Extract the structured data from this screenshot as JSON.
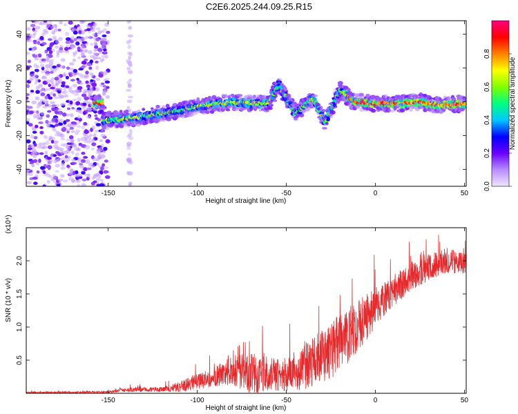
{
  "title": "C2E6.2025.244.09.25.R15",
  "chart_data": [
    {
      "type": "heatmap",
      "xlabel": "Height of straight line (km)",
      "ylabel": "Frequency (Hz)",
      "xlim": [
        -196,
        51
      ],
      "ylim": [
        -50,
        48
      ],
      "xticks": [
        -150,
        -100,
        -50,
        0,
        50
      ],
      "yticks": [
        -40,
        -20,
        0,
        20,
        40
      ],
      "colorbar": {
        "label": "Normalized spectral amplitude",
        "range": [
          0,
          1
        ],
        "ticks": [
          "0.0",
          "0.2",
          "0.4",
          "0.6",
          "0.8"
        ],
        "colors": [
          "#f0e6ff",
          "#b88cff",
          "#6a00ff",
          "#0000ff",
          "#00c8ff",
          "#00ff80",
          "#80ff00",
          "#ffff00",
          "#ff8000",
          "#ff0000",
          "#ff0080"
        ]
      },
      "ridge": [
        {
          "x": -153,
          "y": -11,
          "amp": 0.45
        },
        {
          "x": -140,
          "y": -10,
          "amp": 0.5
        },
        {
          "x": -125,
          "y": -8,
          "amp": 0.45
        },
        {
          "x": -110,
          "y": -5,
          "amp": 0.4
        },
        {
          "x": -95,
          "y": -2,
          "amp": 0.5
        },
        {
          "x": -80,
          "y": 0,
          "amp": 0.55
        },
        {
          "x": -70,
          "y": -1,
          "amp": 0.55
        },
        {
          "x": -60,
          "y": -1,
          "amp": 0.5
        },
        {
          "x": -54,
          "y": 10,
          "amp": 0.35
        },
        {
          "x": -45,
          "y": -7,
          "amp": 0.4
        },
        {
          "x": -35,
          "y": 2,
          "amp": 0.45
        },
        {
          "x": -28,
          "y": -12,
          "amp": 0.4
        },
        {
          "x": -20,
          "y": 7,
          "amp": 0.35
        },
        {
          "x": -12,
          "y": 0,
          "amp": 0.7
        },
        {
          "x": 0,
          "y": -1,
          "amp": 0.75
        },
        {
          "x": 15,
          "y": -1,
          "amp": 0.7
        },
        {
          "x": 25,
          "y": 0,
          "amp": 0.75
        },
        {
          "x": 35,
          "y": -2,
          "amp": 0.7
        },
        {
          "x": 50,
          "y": -1,
          "amp": 0.75
        }
      ]
    },
    {
      "type": "line",
      "xlabel": "Height of straight line (km)",
      "ylabel": "SNR (10 * v/v)",
      "multiplier": "(x10⁴)",
      "xlim": [
        -196,
        51
      ],
      "ylim": [
        0,
        2.5
      ],
      "xticks": [
        -150,
        -100,
        -50,
        0,
        50
      ],
      "yticks": [
        "0.5",
        "1.0",
        "1.5",
        "2.0"
      ],
      "color": "#e8282b",
      "envelope": [
        {
          "x": -196,
          "base": 0.01,
          "noise": 0.01
        },
        {
          "x": -150,
          "base": 0.02,
          "noise": 0.015
        },
        {
          "x": -140,
          "base": 0.05,
          "noise": 0.03
        },
        {
          "x": -120,
          "base": 0.06,
          "noise": 0.04
        },
        {
          "x": -110,
          "base": 0.1,
          "noise": 0.08
        },
        {
          "x": -100,
          "base": 0.18,
          "noise": 0.12
        },
        {
          "x": -90,
          "base": 0.25,
          "noise": 0.15
        },
        {
          "x": -80,
          "base": 0.35,
          "noise": 0.22
        },
        {
          "x": -70,
          "base": 0.3,
          "noise": 0.35
        },
        {
          "x": -60,
          "base": 0.3,
          "noise": 0.25
        },
        {
          "x": -50,
          "base": 0.28,
          "noise": 0.25
        },
        {
          "x": -40,
          "base": 0.4,
          "noise": 0.35
        },
        {
          "x": -30,
          "base": 0.55,
          "noise": 0.4
        },
        {
          "x": -20,
          "base": 0.75,
          "noise": 0.45
        },
        {
          "x": -10,
          "base": 1.0,
          "noise": 0.4
        },
        {
          "x": 0,
          "base": 1.3,
          "noise": 0.3
        },
        {
          "x": 10,
          "base": 1.55,
          "noise": 0.25
        },
        {
          "x": 20,
          "base": 1.75,
          "noise": 0.2
        },
        {
          "x": 30,
          "base": 1.9,
          "noise": 0.2
        },
        {
          "x": 40,
          "base": 2.0,
          "noise": 0.2
        },
        {
          "x": 51,
          "base": 1.95,
          "noise": 0.15
        }
      ]
    }
  ]
}
